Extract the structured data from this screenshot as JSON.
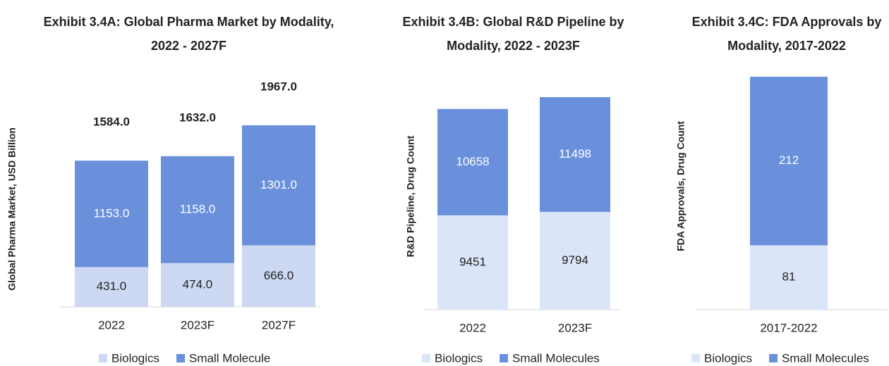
{
  "chart_data": [
    {
      "type": "bar",
      "stacked": true,
      "title": "Exhibit 3.4A: Global Pharma Market by Modality, 2022 - 2027F",
      "y_label": "Global Pharma Market, USD Billion",
      "categories": [
        "2022",
        "2023F",
        "2027F"
      ],
      "series": [
        {
          "name": "Biologics",
          "color": "#cdd9f2",
          "values": [
            431,
            474,
            666
          ],
          "value_labels": [
            "431.0",
            "474.0",
            "666.0"
          ]
        },
        {
          "name": "Small Molecule",
          "color": "#6a90dc",
          "values": [
            1153,
            1158,
            1301
          ],
          "value_labels": [
            "1153.0",
            "1158.0",
            "1301.0"
          ]
        }
      ],
      "totals": [
        1584,
        1632,
        1967
      ],
      "total_labels": [
        "1584.0",
        "1632.0",
        "1967.0"
      ]
    },
    {
      "type": "bar",
      "stacked": true,
      "title": "Exhibit 3.4B: Global R&D Pipeline by Modality, 2022 - 2023F",
      "y_label": "R&D Pipeline, Drug Count",
      "categories": [
        "2022",
        "2023F"
      ],
      "series": [
        {
          "name": "Biologics",
          "color": "#dae6f8",
          "values": [
            9451,
            9794
          ]
        },
        {
          "name": "Small Molecules",
          "color": "#6a90dc",
          "values": [
            10658,
            11498
          ]
        }
      ]
    },
    {
      "type": "bar",
      "stacked": true,
      "title": "Exhibit 3.4C: FDA Approvals by Modality, 2017-2022",
      "y_label": "FDA Approvals, Drug Count",
      "categories": [
        "2017-2022"
      ],
      "series": [
        {
          "name": "Biologics",
          "color": "#dae6f8",
          "values": [
            81
          ]
        },
        {
          "name": "Small Molecules",
          "color": "#6a90dc",
          "values": [
            212
          ]
        }
      ]
    }
  ]
}
